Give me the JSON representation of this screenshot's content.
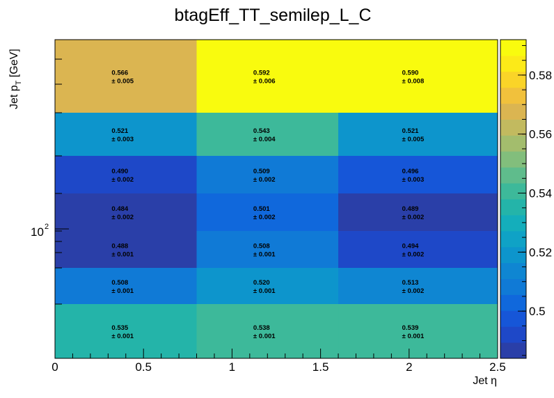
{
  "chart_data": {
    "type": "heatmap",
    "title": "btagEff_TT_semilep_L_C",
    "xlabel": "Jet η",
    "ylabel_main": "Jet p",
    "ylabel_sub": "T",
    "ylabel_unit": " [GeV]",
    "x_edges": [
      0,
      0.8,
      1.6,
      2.5
    ],
    "xlim": [
      0,
      2.5
    ],
    "x_ticks": [
      0,
      0.5,
      1,
      1.5,
      2,
      2.5
    ],
    "x_tick_labels": [
      "0",
      "0.5",
      "1",
      "1.5",
      "2",
      "2.5"
    ],
    "y_scale": "log",
    "y_tick_base": "10",
    "y_tick_exp": "2",
    "y_rows_top_to_bottom": [
      {
        "values": [
          "0.566",
          "0.592",
          "0.590"
        ],
        "errors": [
          "± 0.005",
          "± 0.006",
          "± 0.008"
        ],
        "z": [
          0.566,
          0.592,
          0.59
        ]
      },
      {
        "values": [
          "0.521",
          "0.543",
          "0.521"
        ],
        "errors": [
          "± 0.003",
          "± 0.004",
          "± 0.005"
        ],
        "z": [
          0.521,
          0.543,
          0.521
        ]
      },
      {
        "values": [
          "0.490",
          "0.509",
          "0.496"
        ],
        "errors": [
          "± 0.002",
          "± 0.002",
          "± 0.003"
        ],
        "z": [
          0.49,
          0.509,
          0.496
        ]
      },
      {
        "values": [
          "0.484",
          "0.501",
          "0.489"
        ],
        "errors": [
          "± 0.002",
          "± 0.002",
          "± 0.002"
        ],
        "z": [
          0.484,
          0.501,
          0.489
        ]
      },
      {
        "values": [
          "0.488",
          "0.508",
          "0.494"
        ],
        "errors": [
          "± 0.001",
          "± 0.001",
          "± 0.002"
        ],
        "z": [
          0.488,
          0.508,
          0.494
        ]
      },
      {
        "values": [
          "0.508",
          "0.520",
          "0.513"
        ],
        "errors": [
          "± 0.001",
          "± 0.001",
          "± 0.002"
        ],
        "z": [
          0.508,
          0.52,
          0.513
        ]
      },
      {
        "values": [
          "0.535",
          "0.538",
          "0.539"
        ],
        "errors": [
          "± 0.001",
          "± 0.001",
          "± 0.001"
        ],
        "z": [
          0.535,
          0.538,
          0.539
        ]
      }
    ],
    "zlim": [
      0.484,
      0.592
    ],
    "colorbar_ticks": [
      0.5,
      0.52,
      0.54,
      0.56,
      0.58
    ],
    "colorbar_tick_labels": [
      "0.5",
      "0.52",
      "0.54",
      "0.56",
      "0.58"
    ],
    "palette": [
      "#2a3fa8",
      "#1e48c8",
      "#1656d8",
      "#1068dc",
      "#107ad6",
      "#0f86d2",
      "#0d95cc",
      "#0fa2c6",
      "#14aebb",
      "#24b4a9",
      "#3db99a",
      "#5fbc8c",
      "#82be7c",
      "#a3bd6d",
      "#c2ba5f",
      "#dbb551",
      "#f1c13c",
      "#fad428",
      "#fcea18",
      "#f9fb0e"
    ],
    "colors": {
      "frame": "#000000",
      "background": "#ffffff"
    }
  }
}
